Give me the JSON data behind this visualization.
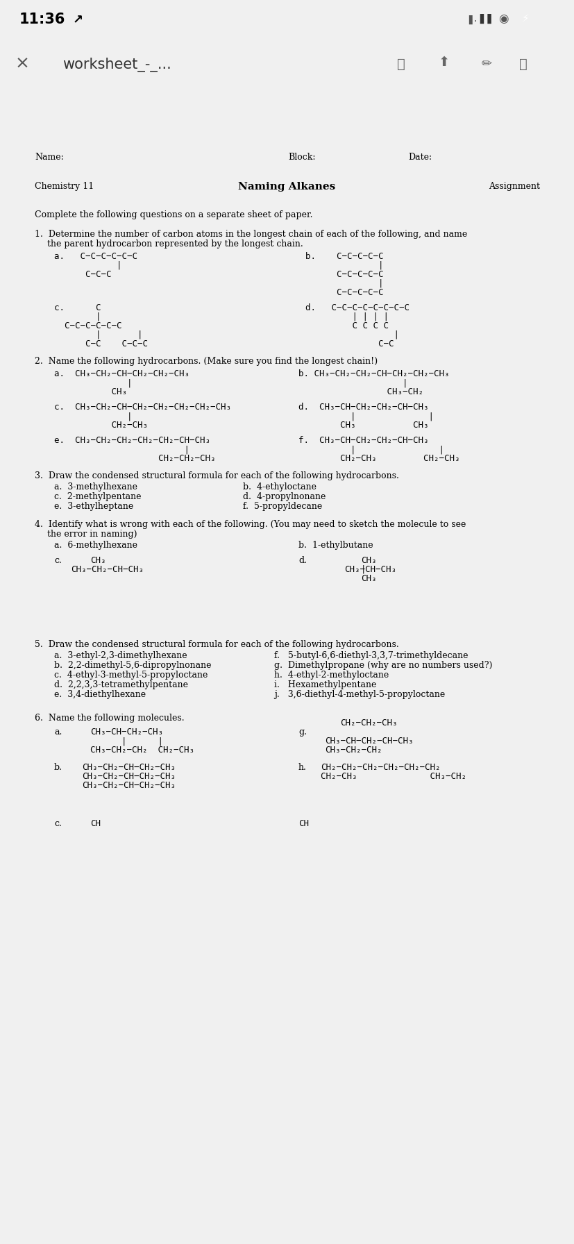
{
  "fig_w": 8.28,
  "fig_h": 17.92,
  "dpi": 100,
  "bg": "#f0f0f0",
  "white": "#ffffff",
  "black": "#000000",
  "gray": "#888888",
  "green": "#4cd964",
  "status_time": "11:36",
  "nav_title": "worksheet_-_...",
  "header_row": [
    "Name:",
    "Block:",
    "Date:"
  ],
  "course": "Chemistry 11",
  "doc_title": "Naming Alkanes",
  "assignment_label": "Assignment",
  "intro": "Complete the following questions on a separate sheet of paper."
}
